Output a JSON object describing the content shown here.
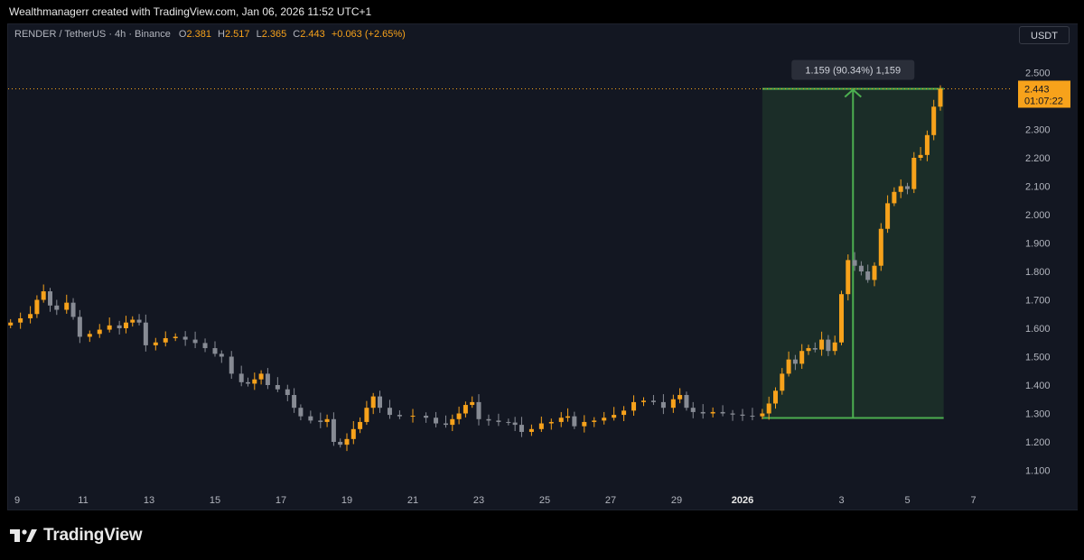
{
  "header": {
    "text": "Wealthmanagerr created with TradingView.com, Jan 06, 2026 11:52 UTC+1"
  },
  "legend": {
    "symbol": "RENDER / TetherUS · 4h · Binance",
    "o_label": "O",
    "o_value": "2.381",
    "h_label": "H",
    "h_value": "2.517",
    "l_label": "L",
    "l_value": "2.365",
    "c_label": "C",
    "c_value": "2.443",
    "change": "+0.063 (+2.65%)"
  },
  "currency_button": "USDT",
  "price_label": {
    "price": "2.443",
    "countdown": "01:07:22"
  },
  "measure_label": "1.159 (90.34%) 1,159",
  "footer": {
    "brand": "TradingView",
    "logo": "tradingview-logo-icon"
  },
  "colors": {
    "up": "#f7a21b",
    "down": "#878b94",
    "measure": "#4caf50",
    "background": "#131722"
  },
  "chart_data": {
    "type": "candlestick",
    "symbol": "RENDER / TetherUS",
    "interval": "4h",
    "exchange": "Binance",
    "y_ticks": [
      "2.500",
      "2.400",
      "2.300",
      "2.200",
      "2.100",
      "2.000",
      "1.900",
      "1.800",
      "1.700",
      "1.600",
      "1.500",
      "1.400",
      "1.300",
      "1.200",
      "1.100"
    ],
    "x_ticks": [
      {
        "label": "9",
        "bold": false
      },
      {
        "label": "11",
        "bold": false
      },
      {
        "label": "13",
        "bold": false
      },
      {
        "label": "15",
        "bold": false
      },
      {
        "label": "17",
        "bold": false
      },
      {
        "label": "19",
        "bold": false
      },
      {
        "label": "21",
        "bold": false
      },
      {
        "label": "23",
        "bold": false
      },
      {
        "label": "25",
        "bold": false
      },
      {
        "label": "27",
        "bold": false
      },
      {
        "label": "29",
        "bold": false
      },
      {
        "label": "2026",
        "bold": true
      },
      {
        "label": "3",
        "bold": false
      },
      {
        "label": "5",
        "bold": false
      },
      {
        "label": "7",
        "bold": false
      }
    ],
    "ylim": [
      1.03,
      2.54
    ],
    "x_range_days": [
      8.75,
      38.3
    ],
    "last_price": 2.443,
    "measure": {
      "from_day": 31.6,
      "to_day": 37.1,
      "low": 1.284,
      "high": 2.443
    },
    "closes": [
      {
        "day": 8.8,
        "c": 1.62
      },
      {
        "day": 9.1,
        "c": 1.635
      },
      {
        "day": 9.4,
        "c": 1.65
      },
      {
        "day": 9.6,
        "c": 1.7
      },
      {
        "day": 9.8,
        "c": 1.73
      },
      {
        "day": 10.0,
        "c": 1.68
      },
      {
        "day": 10.2,
        "c": 1.665
      },
      {
        "day": 10.5,
        "c": 1.69
      },
      {
        "day": 10.7,
        "c": 1.64
      },
      {
        "day": 10.9,
        "c": 1.57
      },
      {
        "day": 11.2,
        "c": 1.58
      },
      {
        "day": 11.5,
        "c": 1.595
      },
      {
        "day": 11.8,
        "c": 1.61
      },
      {
        "day": 12.1,
        "c": 1.6
      },
      {
        "day": 12.3,
        "c": 1.62
      },
      {
        "day": 12.5,
        "c": 1.63
      },
      {
        "day": 12.7,
        "c": 1.62
      },
      {
        "day": 12.9,
        "c": 1.54
      },
      {
        "day": 13.2,
        "c": 1.55
      },
      {
        "day": 13.5,
        "c": 1.565
      },
      {
        "day": 13.8,
        "c": 1.57
      },
      {
        "day": 14.1,
        "c": 1.56
      },
      {
        "day": 14.4,
        "c": 1.548
      },
      {
        "day": 14.7,
        "c": 1.53
      },
      {
        "day": 15.0,
        "c": 1.51
      },
      {
        "day": 15.2,
        "c": 1.5
      },
      {
        "day": 15.5,
        "c": 1.44
      },
      {
        "day": 15.8,
        "c": 1.41
      },
      {
        "day": 16.0,
        "c": 1.405
      },
      {
        "day": 16.2,
        "c": 1.42
      },
      {
        "day": 16.4,
        "c": 1.44
      },
      {
        "day": 16.6,
        "c": 1.4
      },
      {
        "day": 16.9,
        "c": 1.385
      },
      {
        "day": 17.2,
        "c": 1.365
      },
      {
        "day": 17.4,
        "c": 1.32
      },
      {
        "day": 17.6,
        "c": 1.29
      },
      {
        "day": 17.9,
        "c": 1.275
      },
      {
        "day": 18.2,
        "c": 1.27
      },
      {
        "day": 18.4,
        "c": 1.28
      },
      {
        "day": 18.6,
        "c": 1.2
      },
      {
        "day": 18.8,
        "c": 1.19
      },
      {
        "day": 19.0,
        "c": 1.21
      },
      {
        "day": 19.2,
        "c": 1.245
      },
      {
        "day": 19.4,
        "c": 1.27
      },
      {
        "day": 19.6,
        "c": 1.32
      },
      {
        "day": 19.8,
        "c": 1.36
      },
      {
        "day": 20.0,
        "c": 1.32
      },
      {
        "day": 20.3,
        "c": 1.295
      },
      {
        "day": 20.6,
        "c": 1.29
      },
      {
        "day": 21.0,
        "c": 1.292
      },
      {
        "day": 21.4,
        "c": 1.285
      },
      {
        "day": 21.7,
        "c": 1.265
      },
      {
        "day": 22.0,
        "c": 1.26
      },
      {
        "day": 22.2,
        "c": 1.28
      },
      {
        "day": 22.4,
        "c": 1.3
      },
      {
        "day": 22.6,
        "c": 1.33
      },
      {
        "day": 22.8,
        "c": 1.34
      },
      {
        "day": 23.0,
        "c": 1.28
      },
      {
        "day": 23.3,
        "c": 1.275
      },
      {
        "day": 23.6,
        "c": 1.27
      },
      {
        "day": 23.9,
        "c": 1.268
      },
      {
        "day": 24.1,
        "c": 1.26
      },
      {
        "day": 24.3,
        "c": 1.235
      },
      {
        "day": 24.6,
        "c": 1.245
      },
      {
        "day": 24.9,
        "c": 1.265
      },
      {
        "day": 25.2,
        "c": 1.27
      },
      {
        "day": 25.5,
        "c": 1.285
      },
      {
        "day": 25.7,
        "c": 1.29
      },
      {
        "day": 25.9,
        "c": 1.255
      },
      {
        "day": 26.2,
        "c": 1.27
      },
      {
        "day": 26.5,
        "c": 1.275
      },
      {
        "day": 26.8,
        "c": 1.285
      },
      {
        "day": 27.1,
        "c": 1.295
      },
      {
        "day": 27.4,
        "c": 1.31
      },
      {
        "day": 27.7,
        "c": 1.34
      },
      {
        "day": 28.0,
        "c": 1.345
      },
      {
        "day": 28.3,
        "c": 1.34
      },
      {
        "day": 28.6,
        "c": 1.32
      },
      {
        "day": 28.9,
        "c": 1.35
      },
      {
        "day": 29.1,
        "c": 1.365
      },
      {
        "day": 29.3,
        "c": 1.32
      },
      {
        "day": 29.5,
        "c": 1.305
      },
      {
        "day": 29.8,
        "c": 1.3
      },
      {
        "day": 30.1,
        "c": 1.305
      },
      {
        "day": 30.4,
        "c": 1.3
      },
      {
        "day": 30.7,
        "c": 1.296
      },
      {
        "day": 31.0,
        "c": 1.292
      },
      {
        "day": 31.3,
        "c": 1.29
      },
      {
        "day": 31.6,
        "c": 1.3
      },
      {
        "day": 31.8,
        "c": 1.335
      },
      {
        "day": 32.0,
        "c": 1.38
      },
      {
        "day": 32.2,
        "c": 1.44
      },
      {
        "day": 32.4,
        "c": 1.49
      },
      {
        "day": 32.6,
        "c": 1.475
      },
      {
        "day": 32.8,
        "c": 1.52
      },
      {
        "day": 33.0,
        "c": 1.53
      },
      {
        "day": 33.2,
        "c": 1.525
      },
      {
        "day": 33.4,
        "c": 1.56
      },
      {
        "day": 33.6,
        "c": 1.52
      },
      {
        "day": 33.8,
        "c": 1.55
      },
      {
        "day": 34.0,
        "c": 1.72
      },
      {
        "day": 34.2,
        "c": 1.84
      },
      {
        "day": 34.4,
        "c": 1.82
      },
      {
        "day": 34.6,
        "c": 1.8
      },
      {
        "day": 34.8,
        "c": 1.77
      },
      {
        "day": 35.0,
        "c": 1.82
      },
      {
        "day": 35.2,
        "c": 1.95
      },
      {
        "day": 35.4,
        "c": 2.04
      },
      {
        "day": 35.6,
        "c": 2.08
      },
      {
        "day": 35.8,
        "c": 2.1
      },
      {
        "day": 36.0,
        "c": 2.09
      },
      {
        "day": 36.2,
        "c": 2.2
      },
      {
        "day": 36.4,
        "c": 2.21
      },
      {
        "day": 36.6,
        "c": 2.28
      },
      {
        "day": 36.8,
        "c": 2.38
      },
      {
        "day": 37.0,
        "c": 2.443
      }
    ]
  }
}
